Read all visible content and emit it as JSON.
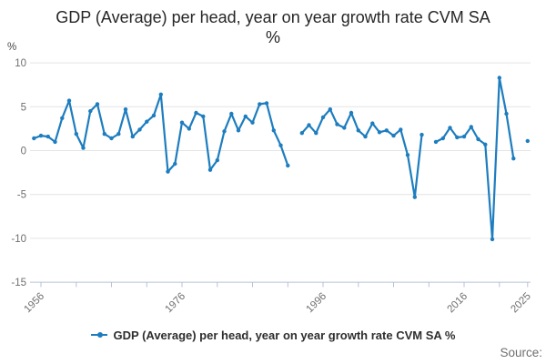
{
  "title": {
    "line1": "GDP (Average) per head, year on year growth rate CVM SA",
    "line2": "%"
  },
  "legend_label": "GDP (Average) per head, year on year growth rate CVM SA %",
  "source_label": "Source:",
  "colors": {
    "line": "#1d7dbf",
    "grid": "#e4e4e4",
    "axis": "#b6c1da",
    "tick_text": "#6e6e70",
    "title_text": "#262626",
    "legend_text": "#2e2e2e",
    "source_text": "#6e6e70"
  },
  "chart_data": {
    "type": "line",
    "title": "GDP (Average) per head, year on year growth rate CVM SA %",
    "ylabel": "%",
    "xlabel": "",
    "ylim": [
      -15,
      10
    ],
    "y_ticks": [
      10,
      5,
      0,
      -5,
      -10,
      -15
    ],
    "x_ticks": [
      1956,
      1961,
      1966,
      1971,
      1976,
      1981,
      1986,
      1991,
      1996,
      2001,
      2006,
      2011,
      2016,
      2021,
      2025
    ],
    "x_tick_labels": [
      1956,
      1976,
      1996,
      2016,
      2025
    ],
    "grid": true,
    "legend_position": "bottom",
    "series_name": "GDP (Average) per head, year on year growth rate CVM SA %",
    "x": [
      1955,
      1956,
      1957,
      1958,
      1959,
      1960,
      1961,
      1962,
      1963,
      1964,
      1965,
      1966,
      1967,
      1968,
      1969,
      1970,
      1971,
      1972,
      1973,
      1974,
      1975,
      1976,
      1977,
      1978,
      1979,
      1980,
      1981,
      1982,
      1983,
      1984,
      1985,
      1986,
      1987,
      1988,
      1989,
      1990,
      1991,
      1992,
      1993,
      1994,
      1995,
      1996,
      1997,
      1998,
      1999,
      2000,
      2001,
      2002,
      2003,
      2004,
      2005,
      2006,
      2007,
      2008,
      2009,
      2010,
      2011,
      2012,
      2013,
      2014,
      2015,
      2016,
      2017,
      2018,
      2019,
      2020,
      2021,
      2022,
      2023,
      2024,
      2025
    ],
    "values": [
      1.4,
      1.7,
      1.6,
      1.0,
      3.7,
      5.7,
      1.9,
      0.3,
      4.5,
      5.3,
      1.9,
      1.4,
      1.9,
      4.7,
      1.6,
      2.4,
      3.3,
      4.0,
      6.4,
      -2.4,
      -1.5,
      3.2,
      2.5,
      4.3,
      3.9,
      -2.2,
      -1.1,
      2.2,
      4.2,
      2.3,
      3.9,
      3.2,
      5.3,
      5.4,
      2.3,
      0.6,
      -1.7,
      null,
      2.0,
      2.9,
      2.0,
      3.8,
      4.7,
      3.0,
      2.6,
      4.3,
      2.3,
      1.6,
      3.1,
      2.1,
      2.3,
      1.7,
      2.4,
      -0.5,
      -5.3,
      1.8,
      null,
      1.0,
      1.4,
      2.6,
      1.5,
      1.6,
      2.7,
      1.3,
      0.7,
      -10.1,
      8.3,
      4.2,
      -0.9,
      null,
      1.1
    ]
  }
}
